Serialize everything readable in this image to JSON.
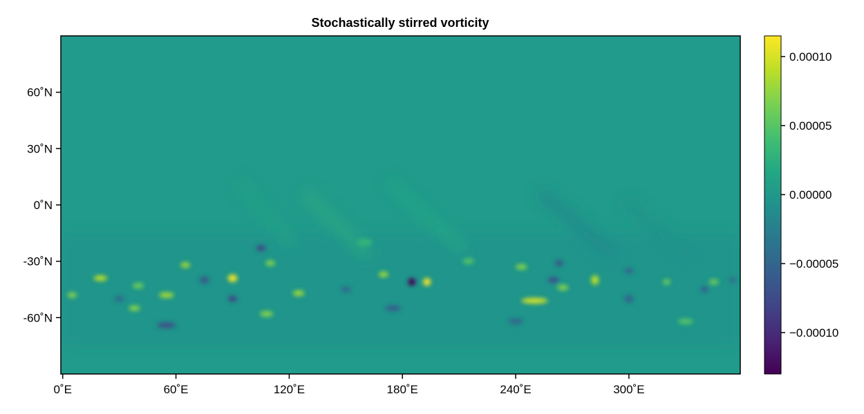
{
  "chart_data": {
    "type": "heatmap",
    "title": "Stochastically stirred vorticity",
    "xlabel": "",
    "ylabel": "",
    "x_ticks": [
      {
        "value": 0,
        "label": "0˚E"
      },
      {
        "value": 60,
        "label": "60˚E"
      },
      {
        "value": 120,
        "label": "120˚E"
      },
      {
        "value": 180,
        "label": "180˚E"
      },
      {
        "value": 240,
        "label": "240˚E"
      },
      {
        "value": 300,
        "label": "300˚E"
      }
    ],
    "y_ticks": [
      {
        "value": 60,
        "label": "60˚N"
      },
      {
        "value": 30,
        "label": "30˚N"
      },
      {
        "value": 0,
        "label": "0˚N"
      },
      {
        "value": -30,
        "label": "-30˚N"
      },
      {
        "value": -60,
        "label": "-60˚N"
      }
    ],
    "xlim": [
      -1,
      359
    ],
    "ylim": [
      -90,
      90
    ],
    "colorbar": {
      "colormap": "viridis",
      "range": [
        -0.00013,
        0.000115
      ],
      "ticks": [
        {
          "value": 0.0001,
          "label": "0.00010"
        },
        {
          "value": 5e-05,
          "label": "0.00005"
        },
        {
          "value": 0.0,
          "label": "0.00000"
        },
        {
          "value": -5e-05,
          "label": "−0.00005"
        },
        {
          "value": -0.0001,
          "label": "−0.00010"
        }
      ]
    },
    "features": [
      {
        "lon": 20,
        "lat": -39,
        "value": 9e-05,
        "w": 7,
        "h": 3
      },
      {
        "lon": 5,
        "lat": -48,
        "value": 7e-05,
        "w": 5,
        "h": 3
      },
      {
        "lon": 40,
        "lat": -43,
        "value": 6e-05,
        "w": 6,
        "h": 3
      },
      {
        "lon": 38,
        "lat": -55,
        "value": 7e-05,
        "w": 6,
        "h": 3
      },
      {
        "lon": 55,
        "lat": -48,
        "value": 8e-05,
        "w": 8,
        "h": 3
      },
      {
        "lon": 65,
        "lat": -32,
        "value": 8e-05,
        "w": 5,
        "h": 3
      },
      {
        "lon": 90,
        "lat": -39,
        "value": 0.00011,
        "w": 5,
        "h": 4
      },
      {
        "lon": 110,
        "lat": -31,
        "value": 7e-05,
        "w": 5,
        "h": 3
      },
      {
        "lon": 125,
        "lat": -47,
        "value": 8e-05,
        "w": 6,
        "h": 3
      },
      {
        "lon": 108,
        "lat": -58,
        "value": 7e-05,
        "w": 7,
        "h": 3
      },
      {
        "lon": 170,
        "lat": -37,
        "value": 8e-05,
        "w": 5,
        "h": 3
      },
      {
        "lon": 193,
        "lat": -41,
        "value": 0.000115,
        "w": 4,
        "h": 4
      },
      {
        "lon": 215,
        "lat": -30,
        "value": 5e-05,
        "w": 6,
        "h": 3
      },
      {
        "lon": 250,
        "lat": -51,
        "value": 0.0001,
        "w": 14,
        "h": 3
      },
      {
        "lon": 243,
        "lat": -33,
        "value": 7e-05,
        "w": 6,
        "h": 3
      },
      {
        "lon": 282,
        "lat": -40,
        "value": 9e-05,
        "w": 4,
        "h": 5
      },
      {
        "lon": 265,
        "lat": -44,
        "value": 7e-05,
        "w": 6,
        "h": 3
      },
      {
        "lon": 320,
        "lat": -41,
        "value": 6e-05,
        "w": 4,
        "h": 3
      },
      {
        "lon": 345,
        "lat": -41,
        "value": 6e-05,
        "w": 5,
        "h": 3
      },
      {
        "lon": 330,
        "lat": -62,
        "value": 5e-05,
        "w": 8,
        "h": 3
      },
      {
        "lon": 160,
        "lat": -20,
        "value": 3e-05,
        "w": 8,
        "h": 4
      },
      {
        "lon": 185,
        "lat": -41,
        "value": -0.00013,
        "w": 4,
        "h": 4
      },
      {
        "lon": 105,
        "lat": -23,
        "value": -8e-05,
        "w": 5,
        "h": 3
      },
      {
        "lon": 90,
        "lat": -50,
        "value": -8e-05,
        "w": 5,
        "h": 3
      },
      {
        "lon": 75,
        "lat": -40,
        "value": -6e-05,
        "w": 5,
        "h": 4
      },
      {
        "lon": 55,
        "lat": -64,
        "value": -7e-05,
        "w": 10,
        "h": 3
      },
      {
        "lon": 30,
        "lat": -50,
        "value": -5e-05,
        "w": 5,
        "h": 3
      },
      {
        "lon": 175,
        "lat": -55,
        "value": -6e-05,
        "w": 8,
        "h": 3
      },
      {
        "lon": 260,
        "lat": -40,
        "value": -7e-05,
        "w": 6,
        "h": 3
      },
      {
        "lon": 263,
        "lat": -31,
        "value": -7e-05,
        "w": 4,
        "h": 3
      },
      {
        "lon": 240,
        "lat": -62,
        "value": -5e-05,
        "w": 8,
        "h": 3
      },
      {
        "lon": 300,
        "lat": -50,
        "value": -5e-05,
        "w": 5,
        "h": 4
      },
      {
        "lon": 340,
        "lat": -45,
        "value": -6e-05,
        "w": 4,
        "h": 3
      },
      {
        "lon": 150,
        "lat": -45,
        "value": -5e-05,
        "w": 5,
        "h": 3
      },
      {
        "lon": 355,
        "lat": -40,
        "value": -4e-05,
        "w": 4,
        "h": 3
      },
      {
        "lon": 300,
        "lat": -35,
        "value": -5e-05,
        "w": 5,
        "h": 3
      }
    ]
  }
}
